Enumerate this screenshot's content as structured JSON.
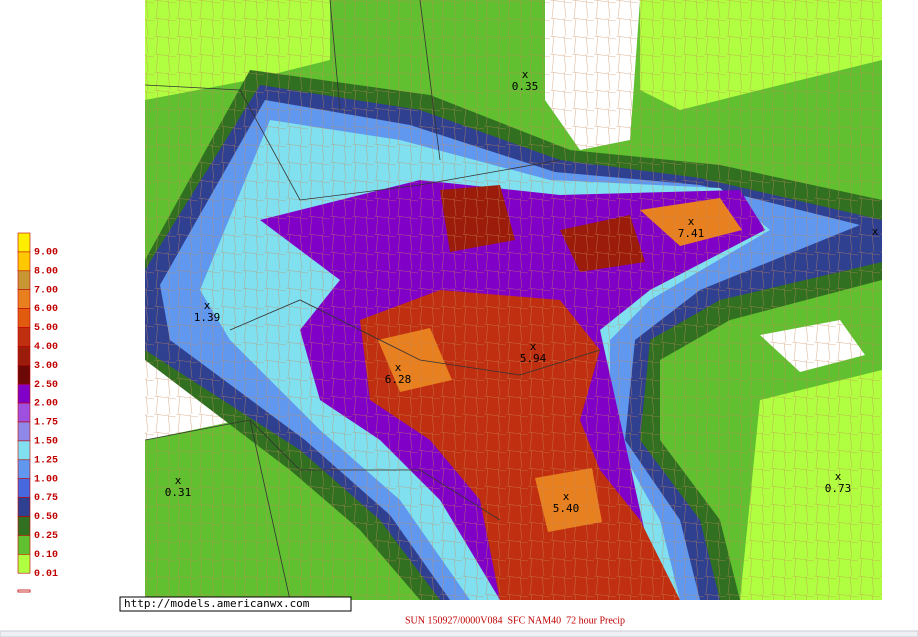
{
  "legend": {
    "items": [
      {
        "label": "9.00",
        "color": "#ffee00"
      },
      {
        "label": "8.00",
        "color": "#ffc800"
      },
      {
        "label": "7.00",
        "color": "#c89632"
      },
      {
        "label": "6.00",
        "color": "#e88020"
      },
      {
        "label": "5.00",
        "color": "#e05a10"
      },
      {
        "label": "4.00",
        "color": "#c03010"
      },
      {
        "label": "3.00",
        "color": "#9c1c0c"
      },
      {
        "label": "2.50",
        "color": "#6c0808"
      },
      {
        "label": "2.00",
        "color": "#8000c8"
      },
      {
        "label": "1.75",
        "color": "#a050e0"
      },
      {
        "label": "1.50",
        "color": "#9088e8"
      },
      {
        "label": "1.25",
        "color": "#80e0f0"
      },
      {
        "label": "1.00",
        "color": "#6098f0"
      },
      {
        "label": "0.75",
        "color": "#4868e0"
      },
      {
        "label": "0.50",
        "color": "#304090"
      },
      {
        "label": "0.25",
        "color": "#307020"
      },
      {
        "label": "0.10",
        "color": "#60c030"
      },
      {
        "label": "0.01",
        "color": "#b0ff40"
      }
    ]
  },
  "annotations": {
    "marker": "x",
    "points": [
      {
        "label": "0.35"
      },
      {
        "label": "7.41"
      },
      {
        "label": "1.39"
      },
      {
        "label": "6.28"
      },
      {
        "label": "5.94"
      },
      {
        "label": "0.31"
      },
      {
        "label": "5.40"
      },
      {
        "label": "0.73"
      }
    ]
  },
  "source_url": "http://models.americanwx.com",
  "caption": "SUN 150927/0000V084  SFC NAM40  72 hour Precip"
}
